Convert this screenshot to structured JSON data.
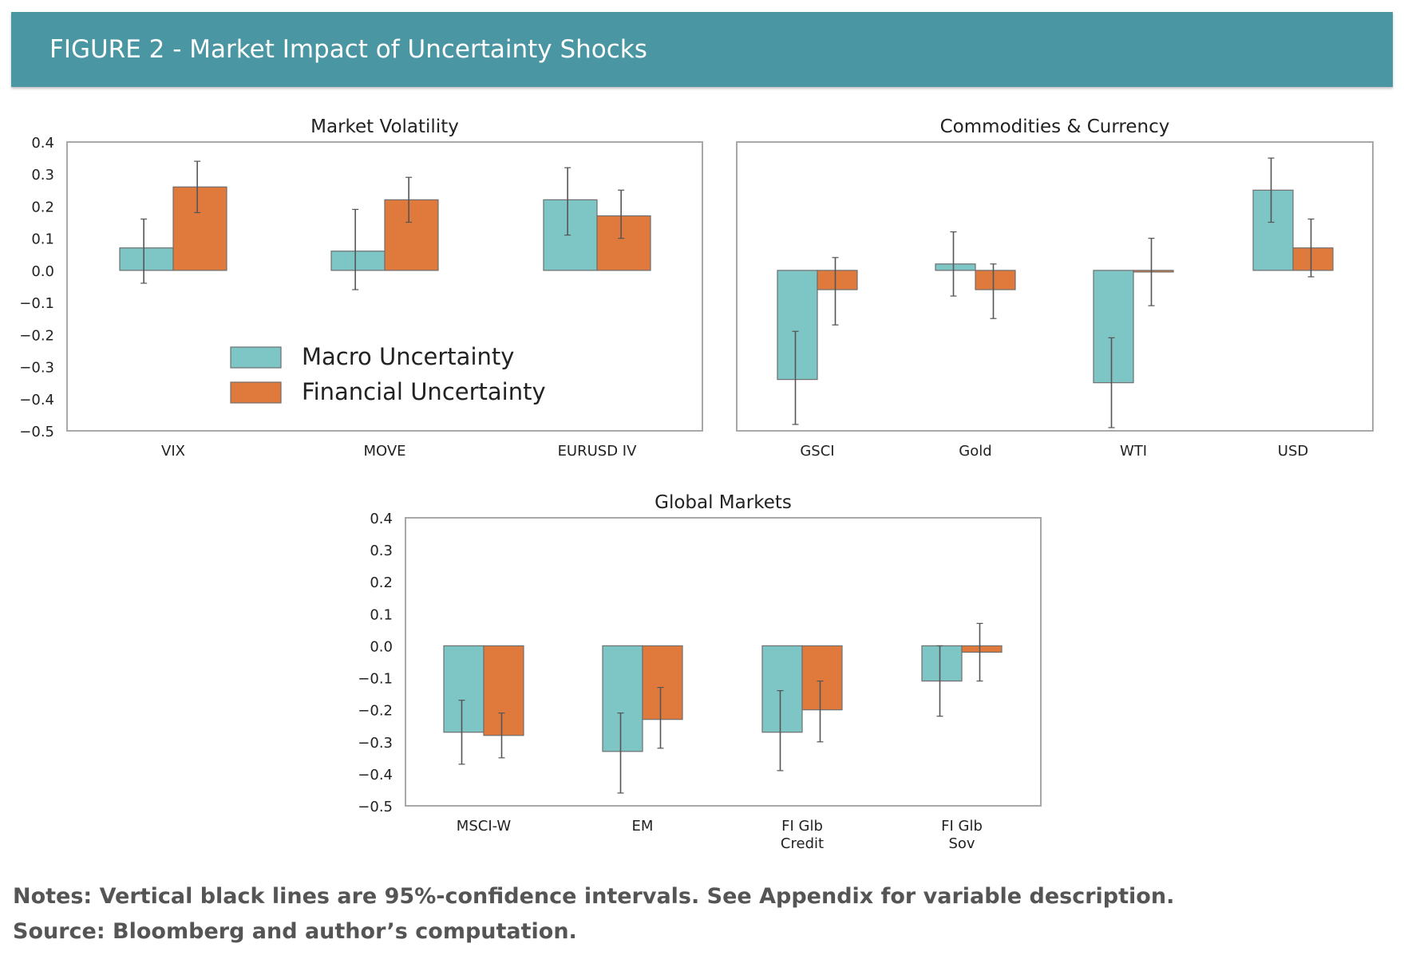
{
  "header": {
    "title": "FIGURE 2 - Market Impact of Uncertainty Shocks"
  },
  "footer": {
    "notes": "Notes: Vertical black lines are 95%-confidence intervals. See Appendix for variable description.",
    "source": "Source: Bloomberg and author’s computation."
  },
  "colors": {
    "macro": "#7ec6c6",
    "financial": "#e07a3c",
    "header_bg": "#4a97a3"
  },
  "chart_data": [
    {
      "type": "bar",
      "title": "Market Volatility",
      "categories": [
        "VIX",
        "MOVE",
        "EURUSD IV"
      ],
      "ylim": [
        -0.5,
        0.4
      ],
      "yticks": [
        "0.4",
        "0.3",
        "0.2",
        "0.1",
        "0.0",
        "−0.1",
        "−0.2",
        "−0.3",
        "−0.4",
        "−0.5"
      ],
      "legend": "lower-left",
      "series": [
        {
          "name": "Macro Uncertainty",
          "values": [
            0.07,
            0.06,
            0.22
          ],
          "ci_low": [
            -0.04,
            -0.06,
            0.11
          ],
          "ci_high": [
            0.16,
            0.19,
            0.32
          ]
        },
        {
          "name": "Financial Uncertainty",
          "values": [
            0.26,
            0.22,
            0.17
          ],
          "ci_low": [
            0.18,
            0.15,
            0.1
          ],
          "ci_high": [
            0.34,
            0.29,
            0.25
          ]
        }
      ]
    },
    {
      "type": "bar",
      "title": "Commodities & Currency",
      "categories": [
        "GSCI",
        "Gold",
        "WTI",
        "USD"
      ],
      "ylim": [
        -0.5,
        0.4
      ],
      "series": [
        {
          "values": [
            -0.34,
            0.02,
            -0.35,
            0.25
          ],
          "ci_low": [
            -0.48,
            -0.08,
            -0.49,
            0.15
          ],
          "ci_high": [
            -0.19,
            0.12,
            -0.21,
            0.35
          ]
        },
        {
          "values": [
            -0.06,
            -0.06,
            -0.005,
            0.07
          ],
          "ci_low": [
            -0.17,
            -0.15,
            -0.11,
            -0.02
          ],
          "ci_high": [
            0.04,
            0.02,
            0.1,
            0.16
          ]
        }
      ]
    },
    {
      "type": "bar",
      "title": "Global Markets",
      "categories": [
        [
          "MSCI-W"
        ],
        [
          "EM"
        ],
        [
          "FI Glb",
          "Credit"
        ],
        [
          "FI Glb",
          "Sov"
        ]
      ],
      "ylim": [
        -0.5,
        0.4
      ],
      "yticks": [
        "0.4",
        "0.3",
        "0.2",
        "0.1",
        "0.0",
        "−0.1",
        "−0.2",
        "−0.3",
        "−0.4",
        "−0.5"
      ],
      "series": [
        {
          "values": [
            -0.27,
            -0.33,
            -0.27,
            -0.11
          ],
          "ci_low": [
            -0.37,
            -0.46,
            -0.39,
            -0.22
          ],
          "ci_high": [
            -0.17,
            -0.21,
            -0.14,
            0.0
          ]
        },
        {
          "values": [
            -0.28,
            -0.23,
            -0.2,
            -0.02
          ],
          "ci_low": [
            -0.35,
            -0.32,
            -0.3,
            -0.11
          ],
          "ci_high": [
            -0.21,
            -0.13,
            -0.11,
            0.07
          ]
        }
      ]
    }
  ]
}
